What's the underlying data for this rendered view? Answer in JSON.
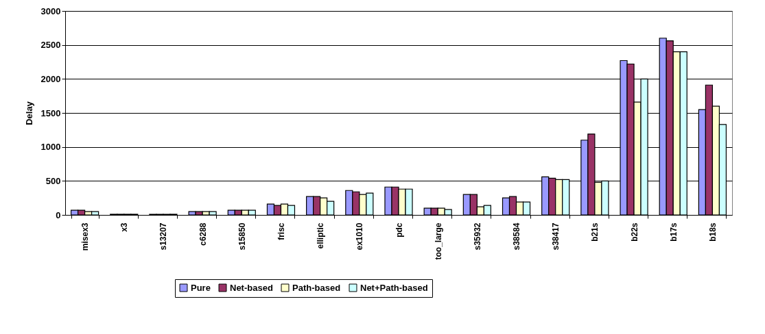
{
  "chart_data": {
    "type": "bar",
    "ylabel": "Delay",
    "categories": [
      "misex3",
      "x3",
      "s13207",
      "c6288",
      "s15850",
      "frisc",
      "elliptic",
      "ex1010",
      "pdc",
      "too_large",
      "s35932",
      "s38584",
      "s38417",
      "b21s",
      "b22s",
      "b17s",
      "b18s"
    ],
    "series": [
      {
        "name": "Pure",
        "color": "#9999ff",
        "values": [
          70,
          10,
          10,
          50,
          70,
          160,
          270,
          360,
          410,
          100,
          300,
          250,
          560,
          1100,
          2270,
          2600,
          1550
        ]
      },
      {
        "name": "Net-based",
        "color": "#993366",
        "values": [
          70,
          10,
          10,
          50,
          70,
          140,
          270,
          340,
          410,
          100,
          300,
          270,
          540,
          1190,
          2220,
          2560,
          1910
        ]
      },
      {
        "name": "Path-based",
        "color": "#ffffcc",
        "values": [
          50,
          10,
          10,
          50,
          70,
          160,
          250,
          300,
          380,
          100,
          120,
          190,
          520,
          480,
          1660,
          2400,
          1600
        ]
      },
      {
        "name": "Net+Path-based",
        "color": "#ccffff",
        "values": [
          50,
          10,
          10,
          50,
          70,
          140,
          200,
          320,
          380,
          80,
          140,
          190,
          520,
          500,
          2000,
          2400,
          1330
        ]
      }
    ],
    "ylim": [
      0,
      3000
    ],
    "yticks": [
      0,
      500,
      1000,
      1500,
      2000,
      2500,
      3000
    ],
    "grid": "y",
    "legend": "bottom"
  }
}
